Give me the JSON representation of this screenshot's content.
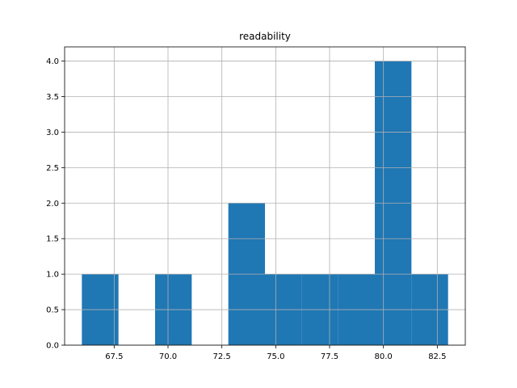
{
  "chart_data": {
    "type": "bar",
    "title": "readability",
    "xlabel": "",
    "ylabel": "",
    "xlim": [
      65.2,
      83.8
    ],
    "ylim": [
      0,
      4.2
    ],
    "grid": true,
    "bar_color": "#1f77b4",
    "grid_color": "#b0b0b0",
    "bins": [
      {
        "x0": 66.0,
        "x1": 67.7,
        "value": 1
      },
      {
        "x0": 69.4,
        "x1": 71.1,
        "value": 1
      },
      {
        "x0": 72.8,
        "x1": 74.5,
        "value": 2
      },
      {
        "x0": 74.5,
        "x1": 76.2,
        "value": 1
      },
      {
        "x0": 76.2,
        "x1": 77.9,
        "value": 1
      },
      {
        "x0": 77.9,
        "x1": 79.6,
        "value": 1
      },
      {
        "x0": 79.6,
        "x1": 81.3,
        "value": 4
      },
      {
        "x0": 81.3,
        "x1": 83.0,
        "value": 1
      }
    ],
    "x_ticks": [
      {
        "value": 67.5,
        "label": "67.5"
      },
      {
        "value": 70.0,
        "label": "70.0"
      },
      {
        "value": 72.5,
        "label": "72.5"
      },
      {
        "value": 75.0,
        "label": "75.0"
      },
      {
        "value": 77.5,
        "label": "77.5"
      },
      {
        "value": 80.0,
        "label": "80.0"
      },
      {
        "value": 82.5,
        "label": "82.5"
      }
    ],
    "y_ticks": [
      {
        "value": 0.0,
        "label": "0.0"
      },
      {
        "value": 0.5,
        "label": "0.5"
      },
      {
        "value": 1.0,
        "label": "1.0"
      },
      {
        "value": 1.5,
        "label": "1.5"
      },
      {
        "value": 2.0,
        "label": "2.0"
      },
      {
        "value": 2.5,
        "label": "2.5"
      },
      {
        "value": 3.0,
        "label": "3.0"
      },
      {
        "value": 3.5,
        "label": "3.5"
      },
      {
        "value": 4.0,
        "label": "4.0"
      }
    ]
  }
}
